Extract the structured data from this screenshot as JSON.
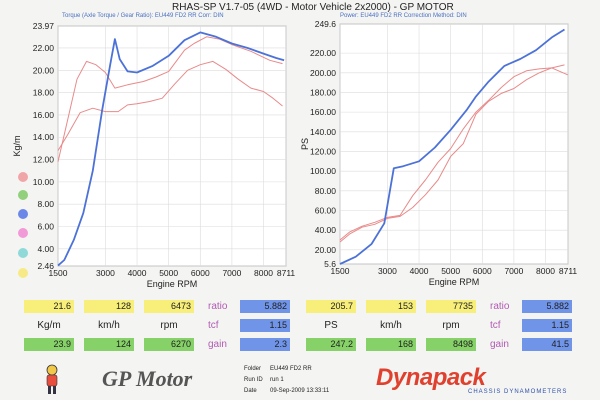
{
  "header": {
    "title": "RHAS-SP V1.7-05   (4WD - Motor Vehicle 2x2000) - GP MOTOR",
    "left_subtitle": "Torque (Axle Torque / Gear Ratio):  EU449 FD2 RR     Corr: DIN",
    "right_subtitle": "Power:  EU449 FD2 RR        Correction Method: DIN"
  },
  "chart_data": [
    {
      "type": "line",
      "title": "",
      "xlabel": "Engine RPM",
      "ylabel": "Kg/m",
      "xlim": [
        1500,
        8711
      ],
      "ylim": [
        2.46,
        23.97
      ],
      "x_ticks": [
        1500,
        3000,
        4000,
        5000,
        6000,
        7000,
        8000,
        8711
      ],
      "y_ticks": [
        2.46,
        4.0,
        6.0,
        8.0,
        10.0,
        12.0,
        14.0,
        16.0,
        18.0,
        20.0,
        22.0,
        23.97
      ],
      "grid": true,
      "series": [
        {
          "color": "#4c72d8",
          "points": [
            [
              1500,
              2.5
            ],
            [
              1700,
              3.0
            ],
            [
              2000,
              4.8
            ],
            [
              2300,
              7.2
            ],
            [
              2600,
              11.0
            ],
            [
              2900,
              16.5
            ],
            [
              3150,
              20.5
            ],
            [
              3300,
              22.8
            ],
            [
              3450,
              21.0
            ],
            [
              3700,
              19.9
            ],
            [
              4000,
              19.8
            ],
            [
              4500,
              20.4
            ],
            [
              5000,
              21.3
            ],
            [
              5500,
              22.7
            ],
            [
              6000,
              23.4
            ],
            [
              6500,
              23.0
            ],
            [
              7000,
              22.4
            ],
            [
              7500,
              22.0
            ],
            [
              8000,
              21.5
            ],
            [
              8400,
              21.1
            ],
            [
              8650,
              20.9
            ]
          ]
        },
        {
          "color": "#e88a8a",
          "points": [
            [
              1500,
              11.8
            ],
            [
              1800,
              15.5
            ],
            [
              2100,
              19.2
            ],
            [
              2400,
              20.8
            ],
            [
              2700,
              20.5
            ],
            [
              3000,
              19.8
            ],
            [
              3300,
              18.4
            ],
            [
              3700,
              18.7
            ],
            [
              4200,
              19.0
            ],
            [
              4600,
              19.4
            ],
            [
              5000,
              19.9
            ],
            [
              5500,
              21.8
            ],
            [
              5800,
              22.4
            ],
            [
              6200,
              23.0
            ],
            [
              6600,
              22.8
            ],
            [
              7000,
              22.3
            ],
            [
              7600,
              21.7
            ],
            [
              8200,
              20.9
            ],
            [
              8600,
              20.6
            ]
          ]
        },
        {
          "color": "#e88a8a",
          "points": [
            [
              1500,
              12.8
            ],
            [
              1800,
              14.2
            ],
            [
              2200,
              16.2
            ],
            [
              2600,
              16.6
            ],
            [
              3000,
              16.3
            ],
            [
              3400,
              16.3
            ],
            [
              3700,
              16.9
            ],
            [
              4000,
              17.0
            ],
            [
              4400,
              17.2
            ],
            [
              4800,
              17.5
            ],
            [
              5200,
              18.8
            ],
            [
              5600,
              20.0
            ],
            [
              6000,
              20.5
            ],
            [
              6400,
              20.8
            ],
            [
              6800,
              20.1
            ],
            [
              7200,
              19.2
            ],
            [
              7600,
              18.4
            ],
            [
              8000,
              18.1
            ],
            [
              8300,
              17.5
            ],
            [
              8600,
              16.8
            ]
          ]
        }
      ]
    },
    {
      "type": "line",
      "title": "",
      "xlabel": "Engine RPM",
      "ylabel": "PS",
      "xlim": [
        1500,
        8711
      ],
      "ylim": [
        5.6,
        249.6
      ],
      "x_ticks": [
        1500,
        3000,
        4000,
        5000,
        6000,
        7000,
        8000,
        8711
      ],
      "y_ticks": [
        5.6,
        20.0,
        40.0,
        60.0,
        80.0,
        100.0,
        120.0,
        140.0,
        160.0,
        180.0,
        200.0,
        220.0,
        249.6
      ],
      "grid": true,
      "series": [
        {
          "color": "#4c72d8",
          "points": [
            [
              1500,
              5.6
            ],
            [
              2000,
              13
            ],
            [
              2500,
              26
            ],
            [
              2900,
              47
            ],
            [
              3200,
              103
            ],
            [
              3500,
              105
            ],
            [
              4000,
              110
            ],
            [
              4500,
              124
            ],
            [
              5000,
              142
            ],
            [
              5500,
              162
            ],
            [
              5800,
              176
            ],
            [
              6200,
              191
            ],
            [
              6700,
              207
            ],
            [
              7200,
              214
            ],
            [
              7700,
              223
            ],
            [
              8200,
              236
            ],
            [
              8600,
              244
            ]
          ]
        },
        {
          "color": "#e88a8a",
          "points": [
            [
              1500,
              30
            ],
            [
              1800,
              38
            ],
            [
              2200,
              44
            ],
            [
              2600,
              48
            ],
            [
              3000,
              53
            ],
            [
              3400,
              55
            ],
            [
              3800,
              75
            ],
            [
              4200,
              91
            ],
            [
              4600,
              109
            ],
            [
              5000,
              123
            ],
            [
              5400,
              143
            ],
            [
              5800,
              160
            ],
            [
              6200,
              172
            ],
            [
              6600,
              185
            ],
            [
              7000,
              196
            ],
            [
              7400,
              202
            ],
            [
              7800,
              204
            ],
            [
              8200,
              205
            ],
            [
              8700,
              198
            ]
          ]
        },
        {
          "color": "#e88a8a",
          "points": [
            [
              1500,
              28
            ],
            [
              1800,
              36
            ],
            [
              2200,
              43
            ],
            [
              2600,
              46
            ],
            [
              3000,
              52
            ],
            [
              3400,
              54
            ],
            [
              3800,
              63
            ],
            [
              4200,
              76
            ],
            [
              4600,
              91
            ],
            [
              5000,
              115
            ],
            [
              5400,
              128
            ],
            [
              5800,
              158
            ],
            [
              6200,
              171
            ],
            [
              6600,
              179
            ],
            [
              7000,
              184
            ],
            [
              7400,
              193
            ],
            [
              7800,
              200
            ],
            [
              8200,
              205
            ],
            [
              8600,
              208
            ]
          ]
        }
      ]
    }
  ],
  "legend_dot_colors": [
    "#f0a6a6",
    "#92d07b",
    "#6b88e8",
    "#f29ad8",
    "#8fd9d9",
    "#f7ea86"
  ],
  "readouts": {
    "left": {
      "top_values": [
        "21.6",
        "128",
        "6473"
      ],
      "unit_labels": [
        "Kg/m",
        "km/h",
        "rpm"
      ],
      "bottom_values": [
        "23.9",
        "124",
        "6270"
      ],
      "param_labels": [
        "ratio",
        "tcf",
        "gain"
      ],
      "param_values": [
        "5.882",
        "1.15",
        "2.3"
      ]
    },
    "right": {
      "top_values": [
        "205.7",
        "153",
        "7735"
      ],
      "unit_labels": [
        "PS",
        "km/h",
        "rpm"
      ],
      "bottom_values": [
        "247.2",
        "168",
        "8498"
      ],
      "param_labels": [
        "ratio",
        "tcf",
        "gain"
      ],
      "param_values": [
        "5.882",
        "1.15",
        "41.5"
      ]
    }
  },
  "footer": {
    "logo_left": "GP Motor",
    "folder_label": "Folder",
    "folder_value": "EU449 FD2 RR",
    "run_label": "Run ID",
    "run_value": "run 1",
    "date_label": "Date",
    "date_value": "09-Sep-2009   13:33:11",
    "logo_right": "Dynapack",
    "logo_right_sub": "CHASSIS DYNAMOMETERS"
  }
}
